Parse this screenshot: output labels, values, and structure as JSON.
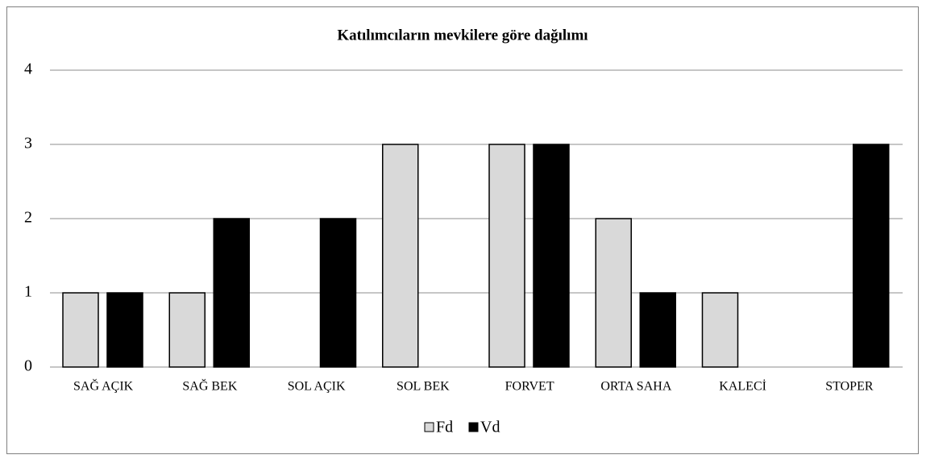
{
  "chart_data": {
    "type": "bar",
    "title": "Katılımcıların mevkilere göre dağılımı",
    "categories": [
      "SAĞ AÇIK",
      "SAĞ BEK",
      "SOL AÇIK",
      "SOL BEK",
      "FORVET",
      "ORTA SAHA",
      "KALECİ",
      "STOPER"
    ],
    "series": [
      {
        "name": "Fd",
        "color": "#d9d9d9",
        "values": [
          1,
          1,
          0,
          3,
          3,
          2,
          1,
          0
        ]
      },
      {
        "name": "Vd",
        "color": "#000000",
        "values": [
          1,
          2,
          2,
          0,
          3,
          1,
          0,
          3
        ]
      }
    ],
    "ylim": [
      0,
      4
    ],
    "yticks": [
      0,
      1,
      2,
      3,
      4
    ],
    "grid": true,
    "legend": "bottom"
  }
}
